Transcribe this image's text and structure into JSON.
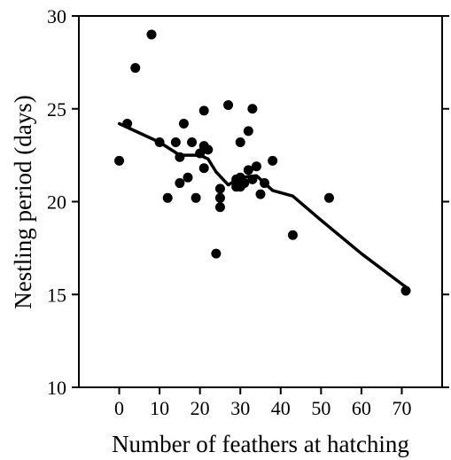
{
  "chart_data": {
    "type": "scatter",
    "title": "",
    "xlabel": "Number of feathers at hatching",
    "ylabel": "Nestling period (days)",
    "xlim": [
      -10,
      80
    ],
    "ylim": [
      10,
      30
    ],
    "xticks": [
      0,
      10,
      20,
      30,
      40,
      50,
      60,
      70
    ],
    "yticks": [
      10,
      15,
      20,
      25,
      30
    ],
    "grid": false,
    "series": [
      {
        "type": "scatter",
        "points": [
          [
            0,
            22.2
          ],
          [
            2,
            24.2
          ],
          [
            4,
            27.2
          ],
          [
            8,
            29.0
          ],
          [
            10,
            23.2
          ],
          [
            12,
            20.2
          ],
          [
            14,
            23.2
          ],
          [
            15,
            22.4
          ],
          [
            15,
            21.0
          ],
          [
            16,
            24.2
          ],
          [
            17,
            21.3
          ],
          [
            18,
            23.2
          ],
          [
            19,
            20.2
          ],
          [
            20,
            22.6
          ],
          [
            21,
            24.9
          ],
          [
            21,
            23.0
          ],
          [
            21,
            21.8
          ],
          [
            22,
            22.8
          ],
          [
            24,
            17.2
          ],
          [
            25,
            20.7
          ],
          [
            25,
            20.2
          ],
          [
            25,
            19.7
          ],
          [
            27,
            25.2
          ],
          [
            29,
            20.8
          ],
          [
            29,
            21.2
          ],
          [
            30,
            23.2
          ],
          [
            30,
            21.3
          ],
          [
            30,
            20.8
          ],
          [
            31,
            21.0
          ],
          [
            32,
            23.8
          ],
          [
            32,
            21.7
          ],
          [
            33,
            25.0
          ],
          [
            33,
            21.2
          ],
          [
            34,
            21.9
          ],
          [
            35,
            20.4
          ],
          [
            36,
            21.0
          ],
          [
            38,
            22.2
          ],
          [
            43,
            18.2
          ],
          [
            52,
            20.2
          ],
          [
            71,
            15.2
          ]
        ]
      },
      {
        "type": "line",
        "points": [
          [
            0,
            24.2
          ],
          [
            10,
            23.2
          ],
          [
            15,
            22.5
          ],
          [
            20,
            22.5
          ],
          [
            22,
            22.3
          ],
          [
            24,
            21.6
          ],
          [
            27,
            20.9
          ],
          [
            30,
            21.3
          ],
          [
            34,
            21.4
          ],
          [
            38,
            20.6
          ],
          [
            43,
            20.3
          ],
          [
            50,
            19.0
          ],
          [
            60,
            17.2
          ],
          [
            71,
            15.4
          ]
        ]
      }
    ]
  }
}
